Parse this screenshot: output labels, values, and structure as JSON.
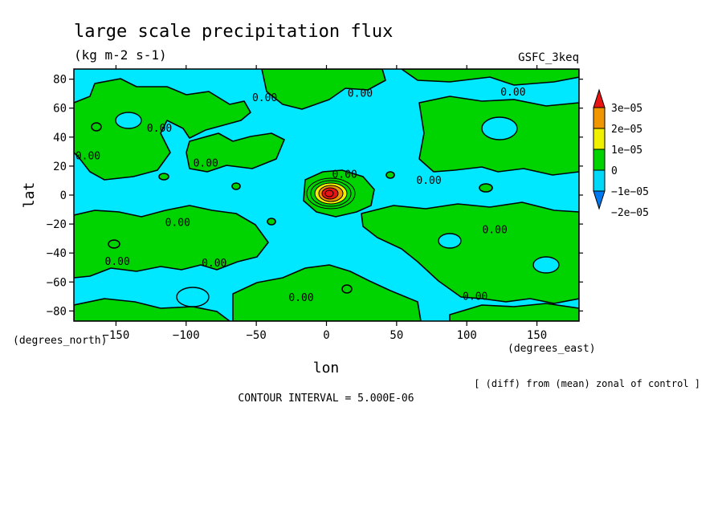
{
  "chart_data": {
    "type": "contour-map",
    "title": "large scale precipitation flux",
    "units": "(kg m-2 s-1)",
    "model_label": "GSFC_3keq",
    "xlabel": "lon",
    "ylabel": "lat",
    "x_unit_label": "(degrees_east)",
    "y_unit_label": "(degrees_north)",
    "xlim": [
      -180,
      180
    ],
    "ylim": [
      -87,
      87
    ],
    "x_ticks": [
      -150,
      -100,
      -50,
      0,
      50,
      100,
      150
    ],
    "x_tick_labels": [
      "−150",
      "−100",
      "−50",
      "0",
      "50",
      "100",
      "150"
    ],
    "y_ticks": [
      80,
      60,
      40,
      20,
      0,
      -20,
      -40,
      -60,
      -80
    ],
    "y_tick_labels": [
      "80",
      "60",
      "40",
      "20",
      "0",
      "−20",
      "−40",
      "−60",
      "−80"
    ],
    "contour_interval_text": "CONTOUR INTERVAL = 5.000E-06",
    "contour_label": "0.00",
    "contour_labels": [
      {
        "lon": -44,
        "lat": 67
      },
      {
        "lon": 24,
        "lat": 70
      },
      {
        "lon": 133,
        "lat": 71
      },
      {
        "lon": -119,
        "lat": 46
      },
      {
        "lon": -170,
        "lat": 27
      },
      {
        "lon": -86,
        "lat": 22
      },
      {
        "lon": 13,
        "lat": 14
      },
      {
        "lon": 73,
        "lat": 10
      },
      {
        "lon": -106,
        "lat": -19
      },
      {
        "lon": 120,
        "lat": -24
      },
      {
        "lon": -149,
        "lat": -46
      },
      {
        "lon": -80,
        "lat": -47
      },
      {
        "lon": -18,
        "lat": -71
      },
      {
        "lon": 106,
        "lat": -70
      }
    ],
    "anomaly_center": {
      "lon": 0,
      "lat": 1,
      "peak": 3e-05
    },
    "note": "[ (diff) from (mean) zonal of control ]",
    "colorbar": {
      "levels": [
        -2e-05,
        -1e-05,
        0,
        1e-05,
        2e-05,
        3e-05
      ],
      "labels": [
        "−2e−05",
        "−1e−05",
        "0",
        "1e−05",
        "2e−05",
        "3e−05"
      ],
      "colors": [
        "#0078f0",
        "#00d8f8",
        "#00d400",
        "#f0f000",
        "#f09600",
        "#e81414"
      ]
    },
    "fill_colors": {
      "negative": "#00e8ff",
      "positive": "#00d400"
    }
  }
}
